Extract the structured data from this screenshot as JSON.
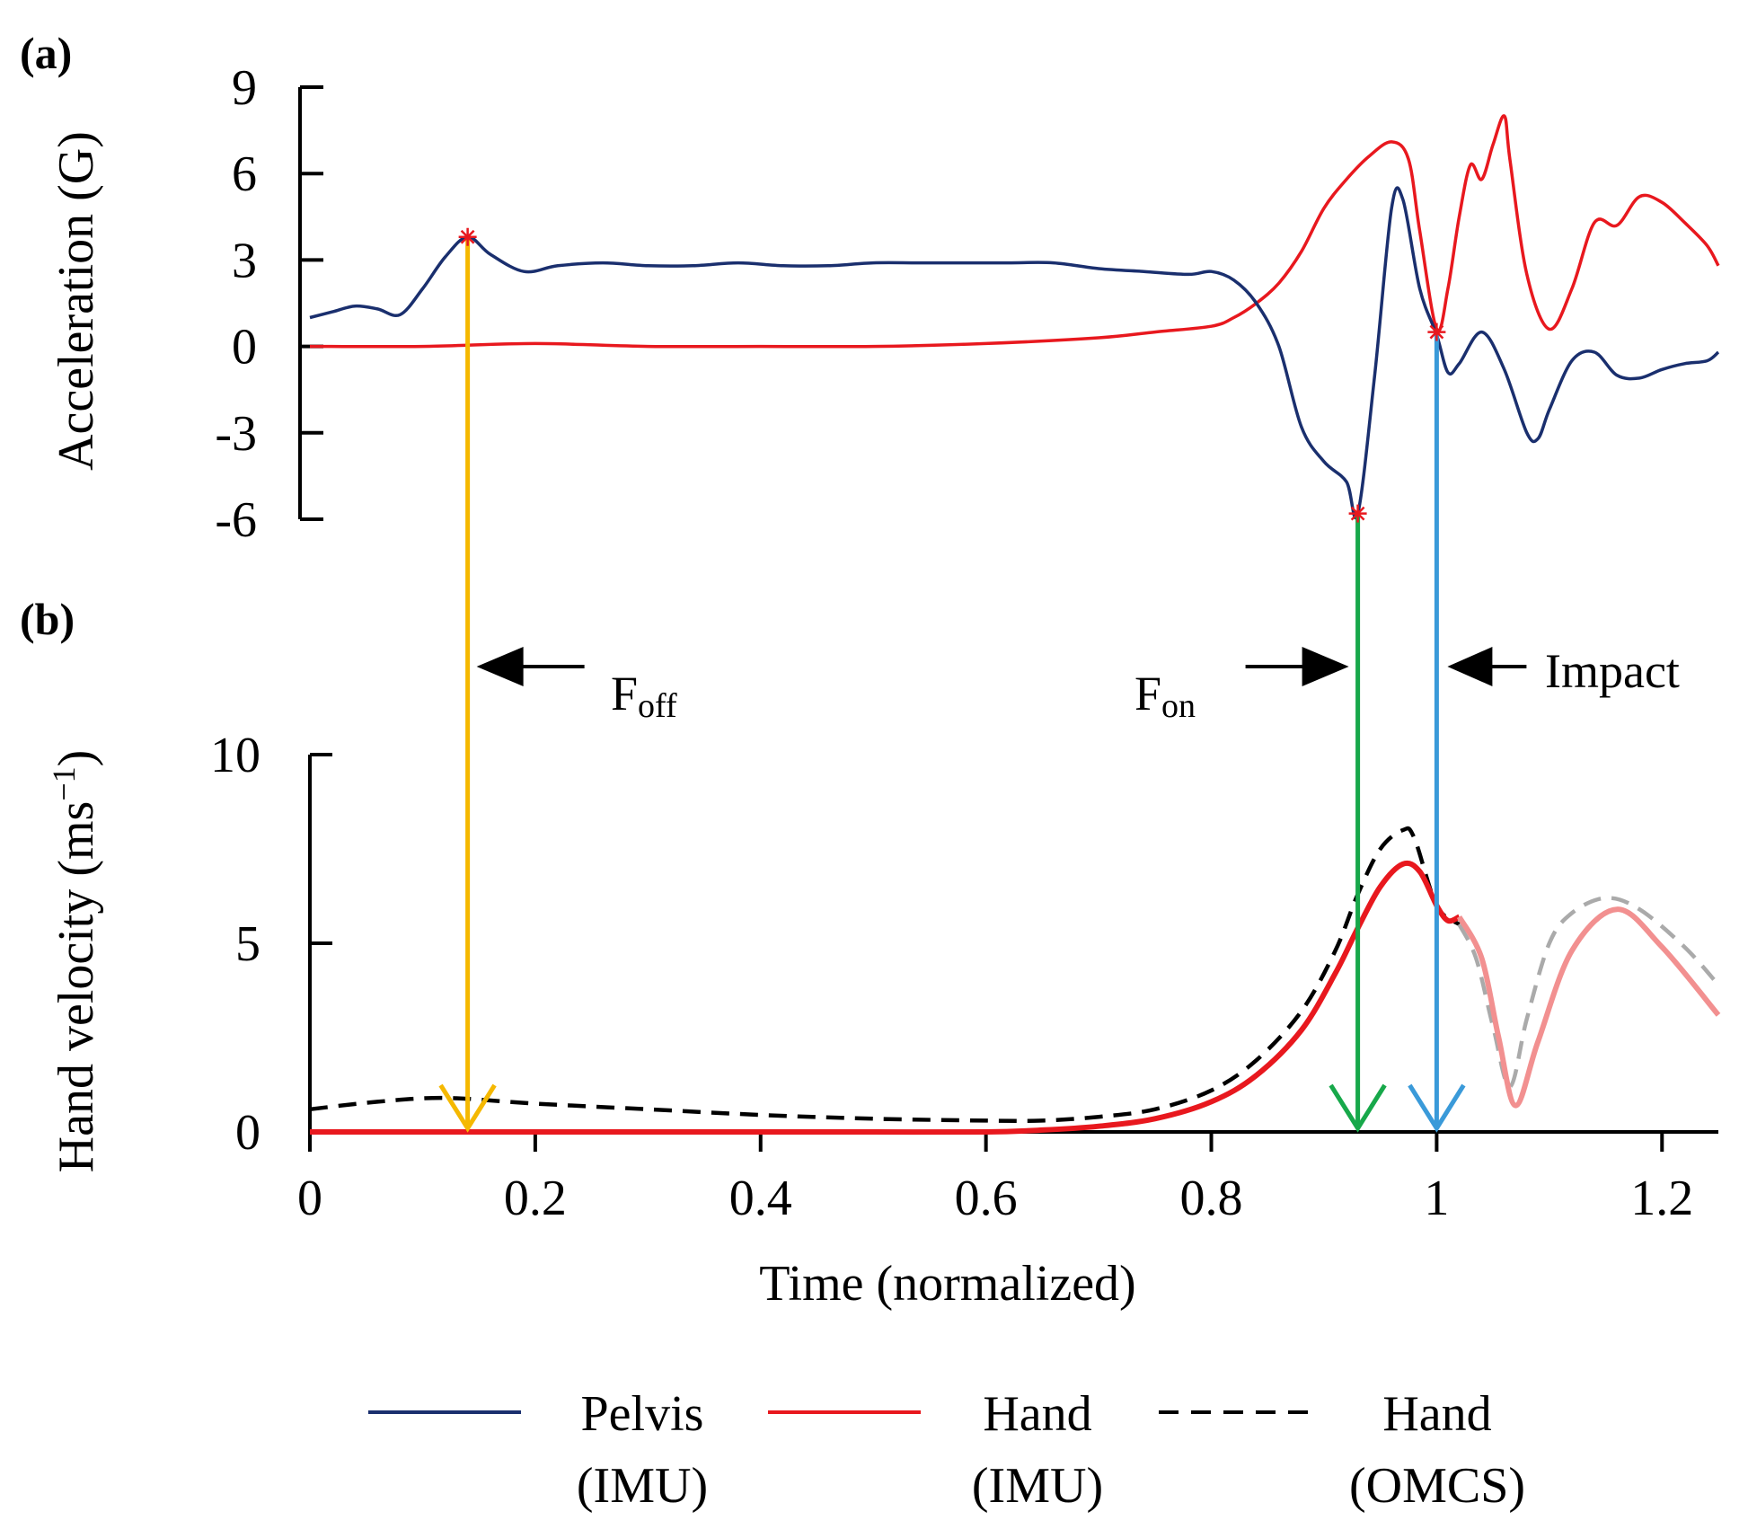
{
  "chart_data": [
    {
      "panel_label": "(a)",
      "type": "line",
      "ylabel": "Acceleration (G)",
      "xlim": [
        0,
        1.25
      ],
      "ylim": [
        -6,
        9
      ],
      "yticks": [
        "9",
        "6",
        "3",
        "0",
        "-3",
        "-6"
      ],
      "ytick_values": [
        9,
        6,
        3,
        0,
        -3,
        -6
      ],
      "series": [
        {
          "name": "Pelvis (IMU)",
          "color": "#1a2f6e",
          "style": "solid",
          "x": [
            0,
            0.02,
            0.04,
            0.06,
            0.08,
            0.1,
            0.12,
            0.14,
            0.16,
            0.19,
            0.22,
            0.26,
            0.3,
            0.34,
            0.38,
            0.42,
            0.46,
            0.5,
            0.54,
            0.58,
            0.62,
            0.66,
            0.7,
            0.74,
            0.78,
            0.8,
            0.82,
            0.84,
            0.86,
            0.88,
            0.9,
            0.92,
            0.93,
            0.945,
            0.96,
            0.97,
            0.985,
            1.0,
            1.01,
            1.02,
            1.04,
            1.06,
            1.08,
            1.09,
            1.1,
            1.12,
            1.14,
            1.16,
            1.18,
            1.2,
            1.22,
            1.24,
            1.25
          ],
          "y": [
            1.0,
            1.2,
            1.4,
            1.3,
            1.1,
            2.0,
            3.1,
            3.8,
            3.2,
            2.6,
            2.8,
            2.9,
            2.8,
            2.8,
            2.9,
            2.8,
            2.8,
            2.9,
            2.9,
            2.9,
            2.9,
            2.9,
            2.7,
            2.6,
            2.5,
            2.6,
            2.3,
            1.5,
            0.0,
            -2.8,
            -4.0,
            -4.7,
            -5.8,
            -1.0,
            4.8,
            5.1,
            2.0,
            0.4,
            -0.9,
            -0.6,
            0.5,
            -0.8,
            -3.0,
            -3.2,
            -2.2,
            -0.5,
            -0.2,
            -1.0,
            -1.1,
            -0.8,
            -0.6,
            -0.5,
            -0.2
          ]
        },
        {
          "name": "Hand (IMU)",
          "color": "#e8181e",
          "style": "solid",
          "x": [
            0,
            0.1,
            0.2,
            0.3,
            0.4,
            0.5,
            0.6,
            0.7,
            0.75,
            0.8,
            0.82,
            0.84,
            0.86,
            0.88,
            0.9,
            0.92,
            0.94,
            0.96,
            0.975,
            0.985,
            1.0,
            1.01,
            1.02,
            1.03,
            1.04,
            1.05,
            1.06,
            1.065,
            1.08,
            1.1,
            1.12,
            1.14,
            1.16,
            1.18,
            1.2,
            1.22,
            1.24,
            1.25
          ],
          "y": [
            0.0,
            0.0,
            0.1,
            0.0,
            0.0,
            0.0,
            0.1,
            0.3,
            0.5,
            0.7,
            1.0,
            1.5,
            2.2,
            3.3,
            4.8,
            5.8,
            6.6,
            7.1,
            6.5,
            4.0,
            0.6,
            2.0,
            4.5,
            6.3,
            5.8,
            7.0,
            8.0,
            6.5,
            2.5,
            0.6,
            2.0,
            4.3,
            4.2,
            5.2,
            5.0,
            4.3,
            3.5,
            2.8
          ]
        }
      ],
      "markers": [
        {
          "x": 0.14,
          "y": 3.8
        },
        {
          "x": 0.93,
          "y": -5.8
        },
        {
          "x": 1.0,
          "y": 0.5
        }
      ]
    },
    {
      "panel_label": "(b)",
      "type": "line",
      "ylabel": "Hand velocity (ms",
      "ylabel_sup": "−1",
      "ylabel_close": ")",
      "xlabel": "Time (normalized)",
      "xlim": [
        0,
        1.25
      ],
      "ylim": [
        0,
        10
      ],
      "yticks": [
        "10",
        "5",
        "0"
      ],
      "ytick_values": [
        10,
        5,
        0
      ],
      "xticks": [
        "0",
        "0.2",
        "0.4",
        "0.6",
        "0.8",
        "1",
        "1.2"
      ],
      "xtick_values": [
        0,
        0.2,
        0.4,
        0.6,
        0.8,
        1.0,
        1.2
      ],
      "series": [
        {
          "name": "Hand (IMU)",
          "color": "#e8181e",
          "faded_color": "#f29090",
          "faded_after": 1.02,
          "style": "solid",
          "x": [
            0,
            0.1,
            0.2,
            0.3,
            0.4,
            0.5,
            0.6,
            0.65,
            0.7,
            0.75,
            0.8,
            0.84,
            0.88,
            0.91,
            0.93,
            0.95,
            0.97,
            0.985,
            1.0,
            1.01,
            1.02,
            1.04,
            1.055,
            1.07,
            1.09,
            1.12,
            1.16,
            1.2,
            1.25
          ],
          "y": [
            0.0,
            0.0,
            0.0,
            0.0,
            0.0,
            0.0,
            0.0,
            0.05,
            0.15,
            0.35,
            0.8,
            1.5,
            2.7,
            4.2,
            5.4,
            6.5,
            7.1,
            6.9,
            6.0,
            5.6,
            5.7,
            4.6,
            2.5,
            0.7,
            2.4,
            4.8,
            5.9,
            4.9,
            3.1
          ]
        },
        {
          "name": "Hand (OMCS)",
          "color": "#000000",
          "faded_color": "#aaaaaa",
          "faded_after": 1.03,
          "style": "dashed",
          "x": [
            0,
            0.06,
            0.12,
            0.2,
            0.3,
            0.4,
            0.5,
            0.6,
            0.65,
            0.7,
            0.75,
            0.8,
            0.84,
            0.88,
            0.91,
            0.93,
            0.95,
            0.97,
            0.98,
            1.0,
            1.02,
            1.035,
            1.05,
            1.065,
            1.08,
            1.1,
            1.12,
            1.15,
            1.18,
            1.22,
            1.25
          ],
          "y": [
            0.6,
            0.8,
            0.9,
            0.75,
            0.6,
            0.45,
            0.35,
            0.3,
            0.3,
            0.4,
            0.6,
            1.1,
            1.9,
            3.2,
            4.8,
            6.3,
            7.5,
            8.0,
            7.8,
            6.0,
            5.5,
            4.6,
            2.8,
            1.2,
            3.0,
            5.0,
            5.8,
            6.2,
            5.9,
            4.9,
            3.9
          ]
        }
      ]
    }
  ],
  "events": [
    {
      "name": "F",
      "sub": "off",
      "x": 0.14,
      "color": "#f5b800"
    },
    {
      "name": "F",
      "sub": "on",
      "x": 0.93,
      "color": "#17a84a"
    },
    {
      "name": "Impact",
      "sub": "",
      "x": 1.0,
      "color": "#3a9ad9"
    }
  ],
  "legend": [
    {
      "line1": "Pelvis",
      "line2": "(IMU)",
      "color": "#1a2f6e",
      "style": "solid"
    },
    {
      "line1": "Hand",
      "line2": "(IMU)",
      "color": "#e8181e",
      "style": "solid"
    },
    {
      "line1": "Hand",
      "line2": "(OMCS)",
      "color": "#000000",
      "style": "dashed"
    }
  ]
}
